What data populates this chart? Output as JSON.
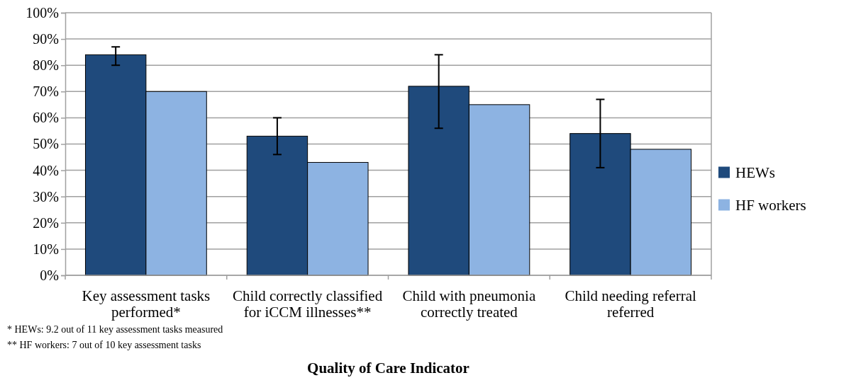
{
  "chart_data": {
    "type": "bar",
    "xlabel": "Quality of Care Indicator",
    "categories": [
      "Key assessment tasks performed*",
      "Child correctly classified for iCCM illnesses**",
      "Child with pneumonia correctly treated",
      "Child needing referral referred"
    ],
    "series": [
      {
        "name": "HEWs",
        "color": "#1f4a7c",
        "values": [
          84,
          53,
          72,
          54
        ],
        "errors": [
          [
            80,
            87
          ],
          [
            46,
            60
          ],
          [
            56,
            84
          ],
          [
            41,
            67
          ]
        ]
      },
      {
        "name": "HF workers",
        "color": "#8db3e2",
        "values": [
          70,
          43,
          65,
          48
        ]
      }
    ],
    "ylim": [
      0,
      100
    ],
    "yticks": [
      {
        "value": 0,
        "label": "0%"
      },
      {
        "value": 10,
        "label": "10%"
      },
      {
        "value": 20,
        "label": "20%"
      },
      {
        "value": 30,
        "label": "30%"
      },
      {
        "value": 40,
        "label": "40%"
      },
      {
        "value": 50,
        "label": "50%"
      },
      {
        "value": 60,
        "label": "60%"
      },
      {
        "value": 70,
        "label": "70%"
      },
      {
        "value": 80,
        "label": "80%"
      },
      {
        "value": 90,
        "label": "90%"
      },
      {
        "value": 100,
        "label": "100%"
      }
    ],
    "grid": "y",
    "legend": "right",
    "annotations": [
      "* HEWs: 9.2 out of 11 key assessment tasks measured",
      "** HF workers: 7 out of 10 key assessment tasks"
    ]
  }
}
